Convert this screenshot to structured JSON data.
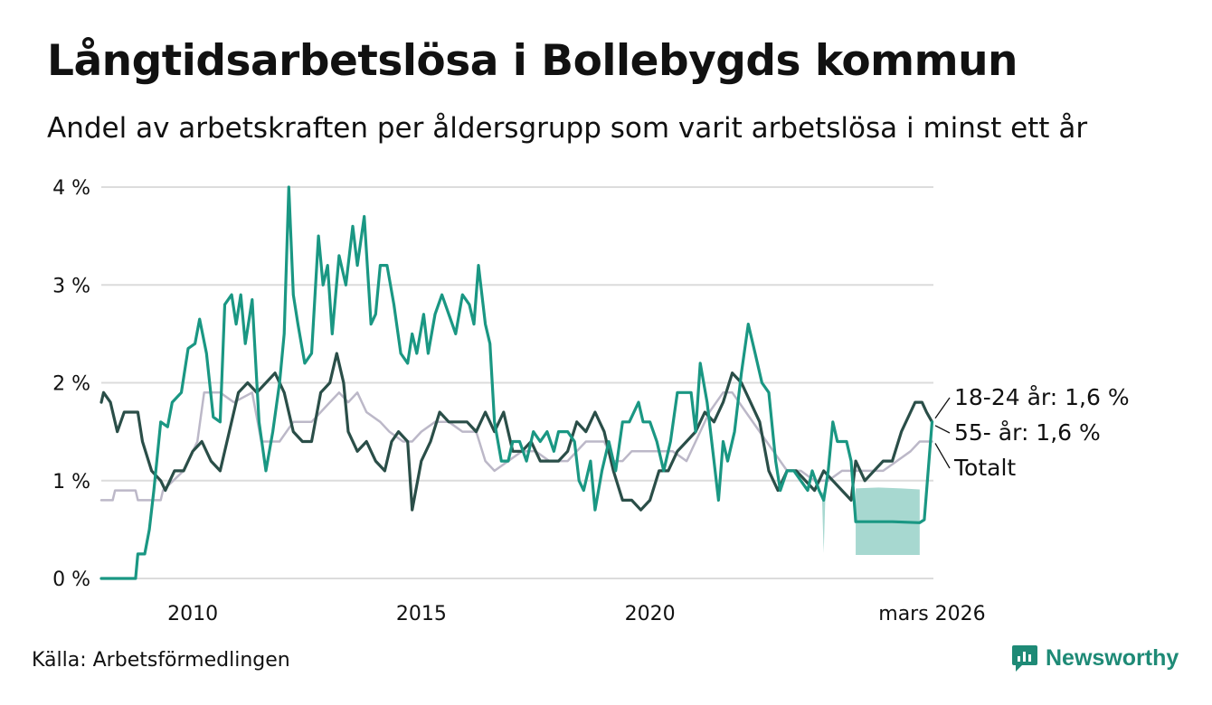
{
  "title": "Långtidsarbetslösa i Bollebygds kommun",
  "subtitle": "Andel av arbetskraften per åldersgrupp som varit arbetslösa i minst ett år",
  "source": "Källa: Arbetsförmedlingen",
  "brand": "Newsworthy",
  "colors": {
    "youth": "#1a9783",
    "older": "#2a4e48",
    "total": "#bcb8c8",
    "band": "#a7d8d0",
    "grid": "#dcdcdc",
    "brand": "#1e8a76"
  },
  "chart_data": {
    "type": "line",
    "xlabel": "",
    "ylabel": "",
    "xlim": [
      2008.0,
      2026.2
    ],
    "ylim": [
      0,
      4
    ],
    "y_ticks": [
      0,
      1,
      2,
      3,
      4
    ],
    "y_tick_labels": [
      "0 %",
      "1 %",
      "2 %",
      "3 %",
      "4 %"
    ],
    "x_ticks": [
      2010,
      2015,
      2020,
      2026.17
    ],
    "x_tick_labels": [
      "2010",
      "2015",
      "2020",
      "mars 2026"
    ],
    "series": [
      {
        "name": "Totalt",
        "label": "Totalt",
        "color": "#bcb8c8",
        "points": [
          [
            2008.0,
            0.8
          ],
          [
            2008.25,
            0.8
          ],
          [
            2008.3,
            0.9
          ],
          [
            2008.75,
            0.9
          ],
          [
            2008.8,
            0.8
          ],
          [
            2009.3,
            0.8
          ],
          [
            2009.35,
            0.9
          ],
          [
            2009.8,
            1.1
          ],
          [
            2010.1,
            1.4
          ],
          [
            2010.25,
            1.9
          ],
          [
            2010.6,
            1.9
          ],
          [
            2010.9,
            1.8
          ],
          [
            2011.3,
            1.9
          ],
          [
            2011.5,
            1.4
          ],
          [
            2011.9,
            1.4
          ],
          [
            2012.2,
            1.6
          ],
          [
            2012.6,
            1.6
          ],
          [
            2013.0,
            1.8
          ],
          [
            2013.2,
            1.9
          ],
          [
            2013.4,
            1.8
          ],
          [
            2013.6,
            1.9
          ],
          [
            2013.8,
            1.7
          ],
          [
            2014.1,
            1.6
          ],
          [
            2014.3,
            1.5
          ],
          [
            2014.6,
            1.4
          ],
          [
            2014.8,
            1.4
          ],
          [
            2015.0,
            1.5
          ],
          [
            2015.3,
            1.6
          ],
          [
            2015.6,
            1.6
          ],
          [
            2015.9,
            1.5
          ],
          [
            2016.2,
            1.5
          ],
          [
            2016.4,
            1.2
          ],
          [
            2016.6,
            1.1
          ],
          [
            2016.9,
            1.2
          ],
          [
            2017.2,
            1.3
          ],
          [
            2017.5,
            1.3
          ],
          [
            2017.8,
            1.2
          ],
          [
            2018.2,
            1.2
          ],
          [
            2018.6,
            1.4
          ],
          [
            2019.0,
            1.4
          ],
          [
            2019.2,
            1.2
          ],
          [
            2019.4,
            1.2
          ],
          [
            2019.6,
            1.3
          ],
          [
            2019.9,
            1.3
          ],
          [
            2020.2,
            1.3
          ],
          [
            2020.5,
            1.3
          ],
          [
            2020.8,
            1.2
          ],
          [
            2021.1,
            1.5
          ],
          [
            2021.3,
            1.7
          ],
          [
            2021.6,
            1.9
          ],
          [
            2021.8,
            1.9
          ],
          [
            2022.1,
            1.7
          ],
          [
            2022.4,
            1.5
          ],
          [
            2022.7,
            1.3
          ],
          [
            2023.0,
            1.1
          ],
          [
            2023.3,
            1.1
          ],
          [
            2023.6,
            1.0
          ],
          [
            2023.9,
            1.0
          ],
          [
            2024.2,
            1.1
          ],
          [
            2024.5,
            1.1
          ],
          [
            2024.8,
            1.1
          ],
          [
            2025.1,
            1.1
          ],
          [
            2025.4,
            1.2
          ],
          [
            2025.7,
            1.3
          ],
          [
            2025.9,
            1.4
          ],
          [
            2026.17,
            1.4
          ]
        ]
      },
      {
        "name": "55- år",
        "label": "55- år: 1,6 %",
        "color": "#2a4e48",
        "points": [
          [
            2008.0,
            1.8
          ],
          [
            2008.05,
            1.9
          ],
          [
            2008.2,
            1.8
          ],
          [
            2008.35,
            1.5
          ],
          [
            2008.5,
            1.7
          ],
          [
            2008.8,
            1.7
          ],
          [
            2008.9,
            1.4
          ],
          [
            2009.1,
            1.1
          ],
          [
            2009.3,
            1.0
          ],
          [
            2009.4,
            0.9
          ],
          [
            2009.6,
            1.1
          ],
          [
            2009.8,
            1.1
          ],
          [
            2010.0,
            1.3
          ],
          [
            2010.2,
            1.4
          ],
          [
            2010.4,
            1.2
          ],
          [
            2010.6,
            1.1
          ],
          [
            2010.8,
            1.5
          ],
          [
            2011.0,
            1.9
          ],
          [
            2011.2,
            2.0
          ],
          [
            2011.4,
            1.9
          ],
          [
            2011.6,
            2.0
          ],
          [
            2011.8,
            2.1
          ],
          [
            2012.0,
            1.9
          ],
          [
            2012.2,
            1.5
          ],
          [
            2012.4,
            1.4
          ],
          [
            2012.6,
            1.4
          ],
          [
            2012.8,
            1.9
          ],
          [
            2013.0,
            2.0
          ],
          [
            2013.15,
            2.3
          ],
          [
            2013.3,
            2.0
          ],
          [
            2013.4,
            1.5
          ],
          [
            2013.6,
            1.3
          ],
          [
            2013.8,
            1.4
          ],
          [
            2014.0,
            1.2
          ],
          [
            2014.2,
            1.1
          ],
          [
            2014.35,
            1.4
          ],
          [
            2014.5,
            1.5
          ],
          [
            2014.7,
            1.4
          ],
          [
            2014.8,
            0.7
          ],
          [
            2015.0,
            1.2
          ],
          [
            2015.2,
            1.4
          ],
          [
            2015.4,
            1.7
          ],
          [
            2015.6,
            1.6
          ],
          [
            2015.8,
            1.6
          ],
          [
            2016.0,
            1.6
          ],
          [
            2016.2,
            1.5
          ],
          [
            2016.4,
            1.7
          ],
          [
            2016.6,
            1.5
          ],
          [
            2016.8,
            1.7
          ],
          [
            2017.0,
            1.3
          ],
          [
            2017.2,
            1.3
          ],
          [
            2017.4,
            1.4
          ],
          [
            2017.6,
            1.2
          ],
          [
            2017.8,
            1.2
          ],
          [
            2018.0,
            1.2
          ],
          [
            2018.2,
            1.3
          ],
          [
            2018.4,
            1.6
          ],
          [
            2018.6,
            1.5
          ],
          [
            2018.8,
            1.7
          ],
          [
            2019.0,
            1.5
          ],
          [
            2019.2,
            1.1
          ],
          [
            2019.4,
            0.8
          ],
          [
            2019.6,
            0.8
          ],
          [
            2019.8,
            0.7
          ],
          [
            2020.0,
            0.8
          ],
          [
            2020.2,
            1.1
          ],
          [
            2020.4,
            1.1
          ],
          [
            2020.6,
            1.3
          ],
          [
            2020.8,
            1.4
          ],
          [
            2021.0,
            1.5
          ],
          [
            2021.2,
            1.7
          ],
          [
            2021.4,
            1.6
          ],
          [
            2021.6,
            1.8
          ],
          [
            2021.8,
            2.1
          ],
          [
            2022.0,
            2.0
          ],
          [
            2022.2,
            1.8
          ],
          [
            2022.4,
            1.6
          ],
          [
            2022.6,
            1.1
          ],
          [
            2022.8,
            0.9
          ],
          [
            2023.0,
            1.1
          ],
          [
            2023.2,
            1.1
          ],
          [
            2023.4,
            1.0
          ],
          [
            2023.6,
            0.9
          ],
          [
            2023.8,
            1.1
          ],
          [
            2024.0,
            1.0
          ],
          [
            2024.2,
            0.9
          ],
          [
            2024.4,
            0.8
          ],
          [
            2024.5,
            1.2
          ],
          [
            2024.7,
            1.0
          ],
          [
            2024.9,
            1.1
          ],
          [
            2025.1,
            1.2
          ],
          [
            2025.3,
            1.2
          ],
          [
            2025.5,
            1.5
          ],
          [
            2025.7,
            1.7
          ],
          [
            2025.8,
            1.8
          ],
          [
            2025.95,
            1.8
          ],
          [
            2026.05,
            1.7
          ],
          [
            2026.17,
            1.6
          ]
        ]
      },
      {
        "name": "18-24 år",
        "label": "18-24 år: 1,6 %",
        "color": "#1a9783",
        "points": [
          [
            2008.0,
            0.0
          ],
          [
            2008.75,
            0.0
          ],
          [
            2008.8,
            0.25
          ],
          [
            2008.95,
            0.25
          ],
          [
            2009.05,
            0.5
          ],
          [
            2009.15,
            0.9
          ],
          [
            2009.3,
            1.6
          ],
          [
            2009.45,
            1.55
          ],
          [
            2009.55,
            1.8
          ],
          [
            2009.75,
            1.9
          ],
          [
            2009.9,
            2.35
          ],
          [
            2010.05,
            2.4
          ],
          [
            2010.15,
            2.65
          ],
          [
            2010.3,
            2.3
          ],
          [
            2010.45,
            1.65
          ],
          [
            2010.6,
            1.6
          ],
          [
            2010.7,
            2.8
          ],
          [
            2010.85,
            2.9
          ],
          [
            2010.95,
            2.6
          ],
          [
            2011.05,
            2.9
          ],
          [
            2011.15,
            2.4
          ],
          [
            2011.3,
            2.85
          ],
          [
            2011.45,
            1.6
          ],
          [
            2011.6,
            1.1
          ],
          [
            2011.75,
            1.5
          ],
          [
            2011.9,
            2.0
          ],
          [
            2012.0,
            2.5
          ],
          [
            2012.1,
            4.0
          ],
          [
            2012.2,
            2.9
          ],
          [
            2012.3,
            2.6
          ],
          [
            2012.45,
            2.2
          ],
          [
            2012.6,
            2.3
          ],
          [
            2012.75,
            3.5
          ],
          [
            2012.85,
            3.0
          ],
          [
            2012.95,
            3.2
          ],
          [
            2013.05,
            2.5
          ],
          [
            2013.2,
            3.3
          ],
          [
            2013.35,
            3.0
          ],
          [
            2013.5,
            3.6
          ],
          [
            2013.6,
            3.2
          ],
          [
            2013.75,
            3.7
          ],
          [
            2013.9,
            2.6
          ],
          [
            2014.0,
            2.7
          ],
          [
            2014.1,
            3.2
          ],
          [
            2014.25,
            3.2
          ],
          [
            2014.4,
            2.8
          ],
          [
            2014.55,
            2.3
          ],
          [
            2014.7,
            2.2
          ],
          [
            2014.8,
            2.5
          ],
          [
            2014.9,
            2.3
          ],
          [
            2015.05,
            2.7
          ],
          [
            2015.15,
            2.3
          ],
          [
            2015.3,
            2.7
          ],
          [
            2015.45,
            2.9
          ],
          [
            2015.6,
            2.7
          ],
          [
            2015.75,
            2.5
          ],
          [
            2015.9,
            2.9
          ],
          [
            2016.05,
            2.8
          ],
          [
            2016.15,
            2.6
          ],
          [
            2016.25,
            3.2
          ],
          [
            2016.4,
            2.6
          ],
          [
            2016.5,
            2.4
          ],
          [
            2016.6,
            1.6
          ],
          [
            2016.75,
            1.2
          ],
          [
            2016.9,
            1.2
          ],
          [
            2017.0,
            1.4
          ],
          [
            2017.15,
            1.4
          ],
          [
            2017.3,
            1.2
          ],
          [
            2017.45,
            1.5
          ],
          [
            2017.6,
            1.4
          ],
          [
            2017.75,
            1.5
          ],
          [
            2017.9,
            1.3
          ],
          [
            2018.0,
            1.5
          ],
          [
            2018.2,
            1.5
          ],
          [
            2018.35,
            1.4
          ],
          [
            2018.45,
            1.0
          ],
          [
            2018.55,
            0.9
          ],
          [
            2018.7,
            1.2
          ],
          [
            2018.8,
            0.7
          ],
          [
            2018.95,
            1.1
          ],
          [
            2019.1,
            1.4
          ],
          [
            2019.25,
            1.1
          ],
          [
            2019.4,
            1.6
          ],
          [
            2019.55,
            1.6
          ],
          [
            2019.75,
            1.8
          ],
          [
            2019.85,
            1.6
          ],
          [
            2020.0,
            1.6
          ],
          [
            2020.15,
            1.4
          ],
          [
            2020.3,
            1.1
          ],
          [
            2020.45,
            1.4
          ],
          [
            2020.6,
            1.9
          ],
          [
            2020.75,
            1.9
          ],
          [
            2020.9,
            1.9
          ],
          [
            2021.0,
            1.5
          ],
          [
            2021.1,
            2.2
          ],
          [
            2021.25,
            1.8
          ],
          [
            2021.4,
            1.2
          ],
          [
            2021.5,
            0.8
          ],
          [
            2021.6,
            1.4
          ],
          [
            2021.7,
            1.2
          ],
          [
            2021.85,
            1.5
          ],
          [
            2022.0,
            2.1
          ],
          [
            2022.15,
            2.6
          ],
          [
            2022.3,
            2.3
          ],
          [
            2022.45,
            2.0
          ],
          [
            2022.6,
            1.9
          ],
          [
            2022.75,
            1.2
          ],
          [
            2022.85,
            0.9
          ],
          [
            2023.0,
            1.1
          ],
          [
            2023.15,
            1.1
          ],
          [
            2023.3,
            1.0
          ],
          [
            2023.45,
            0.9
          ],
          [
            2023.55,
            1.1
          ],
          [
            2023.7,
            0.9
          ],
          [
            2023.8,
            0.8
          ],
          [
            2023.9,
            1.1
          ],
          [
            2024.0,
            1.6
          ],
          [
            2024.1,
            1.4
          ],
          [
            2024.3,
            1.4
          ],
          [
            2024.4,
            1.2
          ],
          [
            2024.5,
            0.58
          ],
          [
            2025.3,
            0.58
          ],
          [
            2025.9,
            0.57
          ],
          [
            2026.0,
            0.6
          ],
          [
            2026.17,
            1.6
          ]
        ]
      }
    ],
    "uncertainty_band": {
      "series": "18-24 år",
      "x": [
        2024.5,
        2025.0,
        2025.5,
        2025.9
      ],
      "upper": [
        0.92,
        0.93,
        0.92,
        0.91
      ],
      "lower": [
        0.24,
        0.24,
        0.24,
        0.24
      ],
      "spike": {
        "x": 2023.8,
        "upper": 0.88,
        "lower": 0.26
      }
    },
    "end_labels": [
      "18-24 år: 1,6 %",
      "55- år: 1,6 %",
      "Totalt"
    ]
  }
}
